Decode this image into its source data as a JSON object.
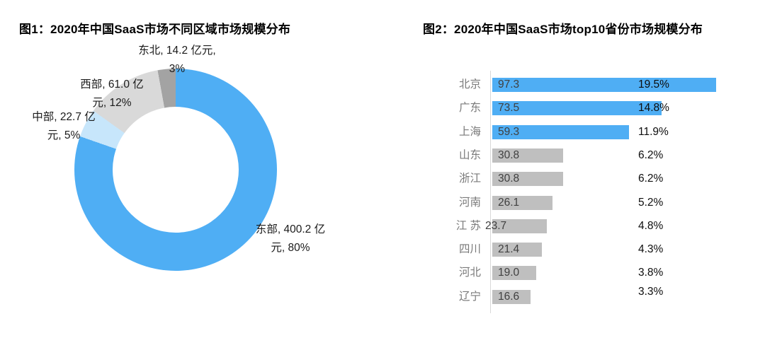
{
  "chart_data": [
    {
      "type": "pie",
      "subtype": "donut",
      "title": "图1：2020年中国SaaS市场不同区域市场规模分布",
      "unit": "亿元",
      "start_angle_deg": 0,
      "direction": "clockwise",
      "slices": [
        {
          "name": "东部",
          "value": 400.2,
          "percent": "80%",
          "color": "#4FAEF4",
          "label_lines": [
            "东部, 400.2 亿",
            "元, 80%"
          ]
        },
        {
          "name": "中部",
          "value": 22.7,
          "percent": "5%",
          "color": "#C7E6FB",
          "label_lines": [
            "中部, 22.7 亿",
            "元, 5%"
          ]
        },
        {
          "name": "西部",
          "value": 61.0,
          "percent": "12%",
          "color": "#D9D9D9",
          "label_lines": [
            "西部, 61.0 亿",
            "元, 12%"
          ]
        },
        {
          "name": "东北",
          "value": 14.2,
          "percent": "3%",
          "color": "#A3A3A3",
          "label_lines": [
            "东北, 14.2 亿元,",
            "3%"
          ]
        }
      ]
    },
    {
      "type": "bar",
      "orientation": "horizontal",
      "title": "图2：2020年中国SaaS市场top10省份市场规模分布",
      "unit": "亿元",
      "categories": [
        "北京",
        "广东",
        "上海",
        "山东",
        "浙江",
        "河南",
        "江 苏",
        "四川",
        "河北",
        "辽宁"
      ],
      "values": [
        97.3,
        73.5,
        59.3,
        30.8,
        30.8,
        26.1,
        23.7,
        21.4,
        19.0,
        16.6
      ],
      "value_labels": [
        "97.3",
        "73.5",
        "59.3",
        "30.8",
        "30.8",
        "26.1",
        "23.7",
        "21.4",
        "19.0",
        "16.6"
      ],
      "percents": [
        "19.5%",
        "14.8%",
        "11.9%",
        "6.2%",
        "6.2%",
        "5.2%",
        "4.8%",
        "4.3%",
        "3.8%",
        "3.3%"
      ],
      "bar_colors": [
        "#4FAEF4",
        "#4FAEF4",
        "#4FAEF4",
        "#BFBFBF",
        "#BFBFBF",
        "#BFBFBF",
        "#BFBFBF",
        "#BFBFBF",
        "#BFBFBF",
        "#BFBFBF"
      ],
      "highlight_color": "#4FAEF4",
      "default_color": "#BFBFBF",
      "axis_color": "#D9D9D9",
      "xlim": [
        0,
        100
      ],
      "grid": false,
      "legend": false
    }
  ]
}
